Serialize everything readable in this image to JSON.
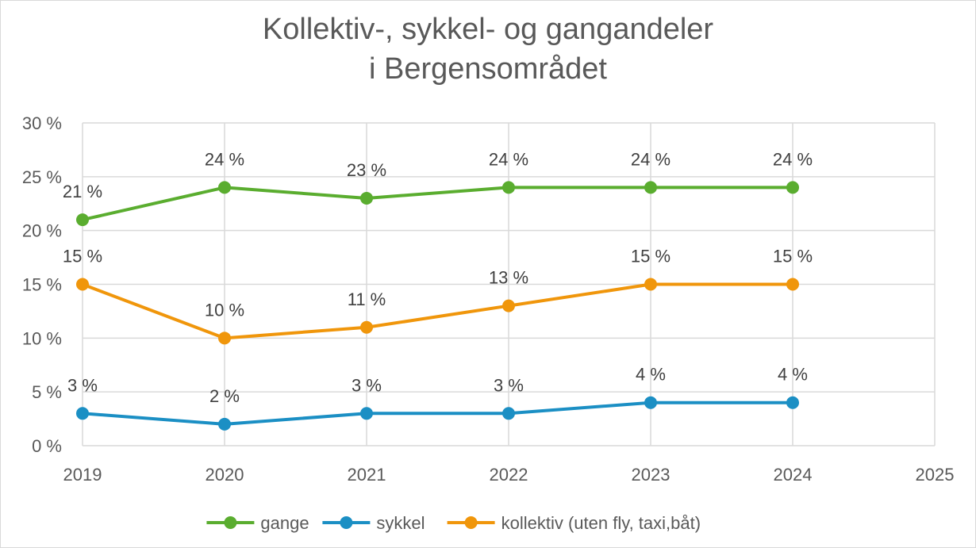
{
  "chart_data": {
    "type": "line",
    "title_lines": [
      "Kollektiv-, sykkel- og gangandeler",
      "i Bergensområdet"
    ],
    "xlabel": "",
    "ylabel": "",
    "x_ticks": [
      "2019",
      "2020",
      "2021",
      "2022",
      "2023",
      "2024",
      "2025"
    ],
    "y_ticks": [
      "0 %",
      "5 %",
      "10 %",
      "15 %",
      "20 %",
      "25 %",
      "30 %"
    ],
    "xlim": [
      2019,
      2025
    ],
    "ylim": [
      0,
      30
    ],
    "grid": true,
    "legend_position": "bottom",
    "series": [
      {
        "name": "gange",
        "color": "#5aad2f",
        "x": [
          2019,
          2020,
          2021,
          2022,
          2023,
          2024
        ],
        "values": [
          21,
          24,
          23,
          24,
          24,
          24
        ],
        "labels": [
          "21 %",
          "24 %",
          "23 %",
          "24 %",
          "24 %",
          "24 %"
        ]
      },
      {
        "name": "sykkel",
        "color": "#1b8fc4",
        "x": [
          2019,
          2020,
          2021,
          2022,
          2023,
          2024
        ],
        "values": [
          3,
          2,
          3,
          3,
          4,
          4
        ],
        "labels": [
          "3 %",
          "2 %",
          "3 %",
          "3 %",
          "4 %",
          "4 %"
        ]
      },
      {
        "name": "kollektiv (uten fly, taxi,båt)",
        "color": "#f0960b",
        "x": [
          2019,
          2020,
          2021,
          2022,
          2023,
          2024
        ],
        "values": [
          15,
          10,
          11,
          13,
          15,
          15
        ],
        "labels": [
          "15 %",
          "10 %",
          "11 %",
          "13 %",
          "15 %",
          "15 %"
        ]
      }
    ]
  }
}
